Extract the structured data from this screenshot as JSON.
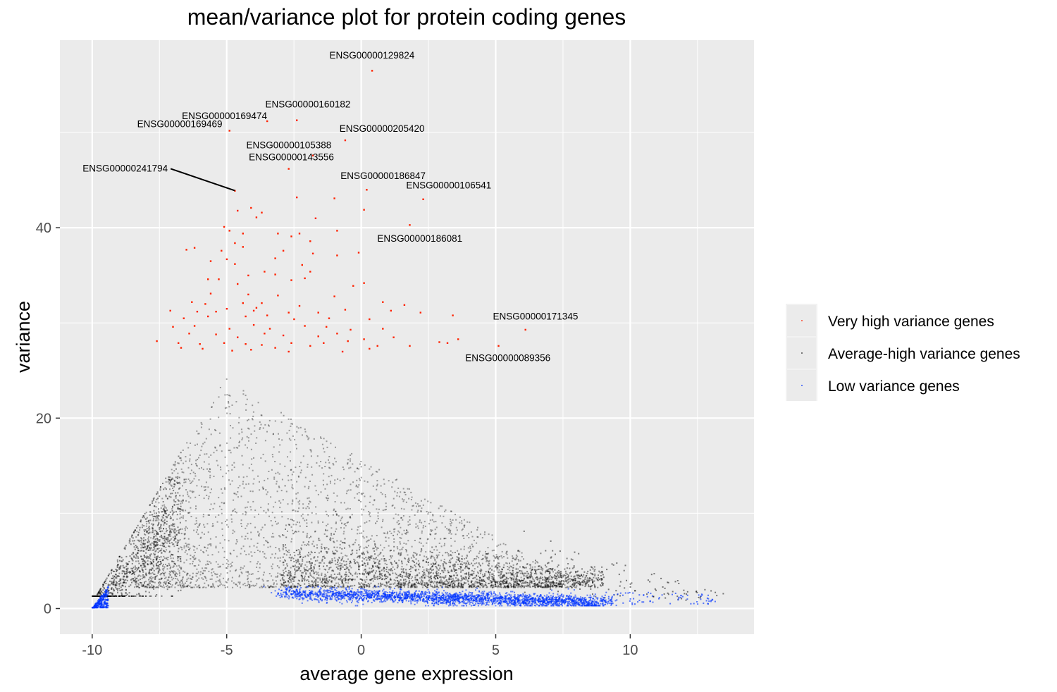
{
  "chart_data": {
    "type": "scatter",
    "title": "mean/variance plot for protein coding genes",
    "xlabel": "average gene expression",
    "ylabel": "variance",
    "xlim": [
      -11.2,
      14.6
    ],
    "ylim": [
      -2.7,
      59.7
    ],
    "x_ticks": [
      -10,
      -5,
      0,
      5,
      10
    ],
    "x_tick_labels": [
      "-10",
      "-5",
      "0",
      "5",
      "10"
    ],
    "y_ticks": [
      0,
      20,
      40
    ],
    "y_tick_labels": [
      "0",
      "20",
      "40"
    ],
    "grid": true,
    "legend_position": "right",
    "colors": {
      "panel_background": "#ebebeb",
      "grid": "#ffffff",
      "very_high": "#ff2200",
      "average_high": "#000000",
      "low": "#0033ff",
      "legend_background": "#f2f2f2",
      "legend_key_background": "#ebebeb"
    },
    "series": [
      {
        "name": "Very high variance genes",
        "color": "#ff2200",
        "points": [
          [
            0.4,
            56.5
          ],
          [
            -2.4,
            51.3
          ],
          [
            -3.5,
            51.2
          ],
          [
            -4.9,
            50.2
          ],
          [
            -0.6,
            49.2
          ],
          [
            -2.7,
            46.2
          ],
          [
            -1.8,
            47.6
          ],
          [
            -4.7,
            43.9
          ],
          [
            0.2,
            44.0
          ],
          [
            -2.4,
            43.2
          ],
          [
            -1.0,
            43.1
          ],
          [
            2.3,
            43.0
          ],
          [
            -4.6,
            41.8
          ],
          [
            -3.7,
            41.6
          ],
          [
            -4.1,
            42.1
          ],
          [
            0.1,
            41.9
          ],
          [
            -1.7,
            41.0
          ],
          [
            -3.9,
            41.1
          ],
          [
            1.8,
            40.3
          ],
          [
            -5.1,
            40.1
          ],
          [
            -4.9,
            39.7
          ],
          [
            -0.9,
            39.7
          ],
          [
            -3.1,
            39.4
          ],
          [
            -2.3,
            39.4
          ],
          [
            -4.4,
            39.4
          ],
          [
            -2.6,
            39.1
          ],
          [
            -1.9,
            38.6
          ],
          [
            -6.2,
            37.9
          ],
          [
            -6.5,
            37.7
          ],
          [
            -4.7,
            38.4
          ],
          [
            -4.4,
            38.0
          ],
          [
            -2.9,
            37.6
          ],
          [
            -1.8,
            37.3
          ],
          [
            -0.9,
            37.1
          ],
          [
            -0.1,
            37.4
          ],
          [
            -5.2,
            37.6
          ],
          [
            -5.0,
            36.7
          ],
          [
            -5.6,
            36.5
          ],
          [
            -3.2,
            36.8
          ],
          [
            -2.2,
            36.1
          ],
          [
            -4.7,
            36.2
          ],
          [
            -1.9,
            35.4
          ],
          [
            -4.2,
            35.0
          ],
          [
            -3.6,
            35.4
          ],
          [
            -3.2,
            35.1
          ],
          [
            -2.6,
            34.5
          ],
          [
            -2.1,
            34.7
          ],
          [
            -5.3,
            34.6
          ],
          [
            -5.7,
            34.6
          ],
          [
            -4.6,
            34.1
          ],
          [
            0.1,
            34.2
          ],
          [
            -0.3,
            33.9
          ],
          [
            -4.2,
            33.0
          ],
          [
            -3.1,
            32.9
          ],
          [
            -5.6,
            33.1
          ],
          [
            -1.0,
            32.8
          ],
          [
            -6.3,
            32.2
          ],
          [
            -5.8,
            32.0
          ],
          [
            -4.4,
            32.1
          ],
          [
            -3.7,
            32.1
          ],
          [
            -3.9,
            31.6
          ],
          [
            -2.3,
            31.8
          ],
          [
            0.8,
            32.2
          ],
          [
            1.6,
            31.9
          ],
          [
            -7.1,
            31.3
          ],
          [
            -6.1,
            31.2
          ],
          [
            -5.4,
            31.2
          ],
          [
            -5.0,
            31.5
          ],
          [
            -4.0,
            31.3
          ],
          [
            -2.7,
            31.1
          ],
          [
            -1.6,
            31.1
          ],
          [
            -0.6,
            31.4
          ],
          [
            1.1,
            31.3
          ],
          [
            3.4,
            30.8
          ],
          [
            -6.6,
            30.5
          ],
          [
            -5.7,
            30.7
          ],
          [
            -4.3,
            30.7
          ],
          [
            -3.5,
            30.8
          ],
          [
            -2.5,
            30.4
          ],
          [
            -1.2,
            30.5
          ],
          [
            0.3,
            30.4
          ],
          [
            2.2,
            31.1
          ],
          [
            -7.0,
            29.6
          ],
          [
            -6.2,
            29.7
          ],
          [
            -4.9,
            29.4
          ],
          [
            -4.0,
            29.8
          ],
          [
            -3.4,
            29.4
          ],
          [
            -2.1,
            29.7
          ],
          [
            -1.3,
            29.6
          ],
          [
            -0.4,
            29.3
          ],
          [
            0.8,
            29.4
          ],
          [
            -6.4,
            28.9
          ],
          [
            -5.4,
            28.8
          ],
          [
            -4.6,
            28.5
          ],
          [
            -3.6,
            28.9
          ],
          [
            -2.9,
            28.7
          ],
          [
            -1.6,
            28.6
          ],
          [
            -0.9,
            28.9
          ],
          [
            0.1,
            28.3
          ],
          [
            1.2,
            28.5
          ],
          [
            -7.6,
            28.1
          ],
          [
            -6.8,
            27.9
          ],
          [
            -6.0,
            27.8
          ],
          [
            -5.1,
            27.9
          ],
          [
            -4.3,
            27.8
          ],
          [
            -3.7,
            27.7
          ],
          [
            -2.6,
            27.9
          ],
          [
            -1.4,
            27.9
          ],
          [
            -0.5,
            28.1
          ],
          [
            0.6,
            27.6
          ],
          [
            2.9,
            28.0
          ],
          [
            3.2,
            27.9
          ],
          [
            3.6,
            28.3
          ],
          [
            5.1,
            27.6
          ],
          [
            6.1,
            29.3
          ],
          [
            -6.7,
            27.4
          ],
          [
            -5.9,
            27.3
          ],
          [
            -4.8,
            27.1
          ],
          [
            -4.1,
            27.2
          ],
          [
            -3.2,
            27.4
          ],
          [
            -2.7,
            27.0
          ],
          [
            -1.9,
            27.6
          ],
          [
            -0.7,
            27.0
          ],
          [
            0.3,
            27.3
          ],
          [
            1.8,
            27.6
          ]
        ]
      }
    ],
    "background_series": [
      {
        "name": "Average-high variance genes",
        "color": "#000000"
      },
      {
        "name": "Low variance genes",
        "color": "#0033ff"
      }
    ],
    "annotations": [
      {
        "label": "ENSG00000129824",
        "x": 0.4,
        "y": 56.5
      },
      {
        "label": "ENSG00000160182",
        "x": -2.4,
        "y": 51.3
      },
      {
        "label": "ENSG00000169469",
        "x": -4.9,
        "y": 50.2
      },
      {
        "label": "ENSG00000205420",
        "x": -0.6,
        "y": 49.2
      },
      {
        "label": "ENSG00000169474",
        "x": -3.5,
        "y": 51.2
      },
      {
        "label": "ENSG00000105388",
        "x": -1.8,
        "y": 47.6
      },
      {
        "label": "ENSG00000241794",
        "x": -4.7,
        "y": 43.9
      },
      {
        "label": "ENSG00000143556",
        "x": -2.7,
        "y": 46.2
      },
      {
        "label": "ENSG00000186847",
        "x": 0.2,
        "y": 44.0
      },
      {
        "label": "ENSG00000106541",
        "x": 2.3,
        "y": 43.0
      },
      {
        "label": "ENSG00000186081",
        "x": 1.8,
        "y": 40.3
      },
      {
        "label": "ENSG00000171345",
        "x": 6.1,
        "y": 29.3
      },
      {
        "label": "ENSG00000089356",
        "x": 5.1,
        "y": 27.6
      }
    ]
  }
}
